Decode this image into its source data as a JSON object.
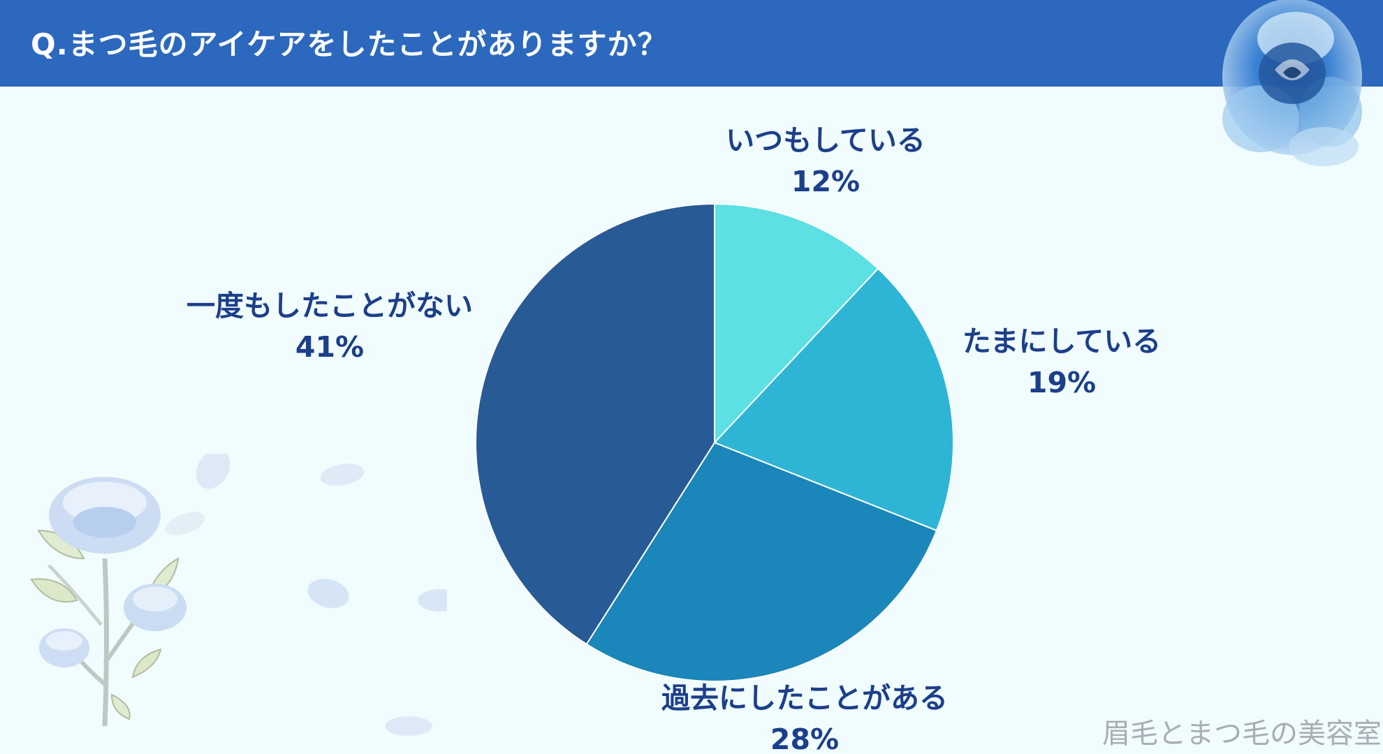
{
  "header": {
    "question": "Q.まつ毛のアイケアをしたことがありますか？"
  },
  "chart_data": {
    "type": "pie",
    "title": "Q.まつ毛のアイケアをしたことがありますか？",
    "slices": [
      {
        "label": "いつもしている",
        "value": 12,
        "value_label": "12%",
        "color": "#5ce0e4"
      },
      {
        "label": "たまにしている",
        "value": 19,
        "value_label": "19%",
        "color": "#2eb5d5"
      },
      {
        "label": "過去にしたことがある",
        "value": 28,
        "value_label": "28%",
        "color": "#1a86b9"
      },
      {
        "label": "一度もしたことがない",
        "value": 41,
        "value_label": "41%",
        "color": "#285a95"
      }
    ],
    "start_angle": "12 o'clock",
    "direction": "clockwise",
    "legend": "none (direct labels)"
  },
  "colors": {
    "header_background": "#2c68bd",
    "page_background": "#f0fcfd",
    "label_text": "#1c3f8a",
    "watermark_text": "#a8aeb4"
  },
  "footer": {
    "watermark": "眉毛とまつ毛の美容室"
  },
  "decorations": [
    "blue-rose-icon",
    "rose-bouquet-illustration",
    "petal-icon"
  ]
}
